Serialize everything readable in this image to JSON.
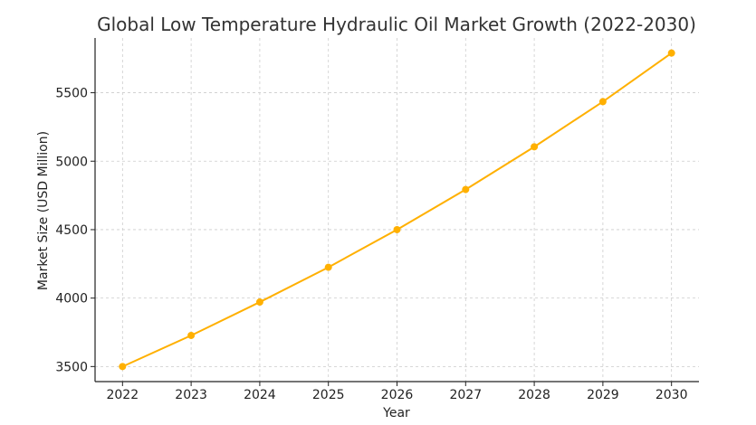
{
  "chart_data": {
    "type": "line",
    "title": "Global Low Temperature Hydraulic Oil Market Growth (2022-2030)",
    "xlabel": "Year",
    "ylabel": "Market Size (USD Million)",
    "x": [
      2022,
      2023,
      2024,
      2025,
      2026,
      2027,
      2028,
      2029,
      2030
    ],
    "series": [
      {
        "name": "Market Size",
        "values": [
          3500,
          3727,
          3971,
          4225,
          4500,
          4793,
          5105,
          5435,
          5790
        ],
        "color": "#FFB000"
      }
    ],
    "yticks": [
      3500,
      4000,
      4500,
      5000,
      5500
    ],
    "xlim": [
      2021.6,
      2030.4
    ],
    "ylim": [
      3390,
      5900
    ],
    "grid": true,
    "legend": "none"
  }
}
